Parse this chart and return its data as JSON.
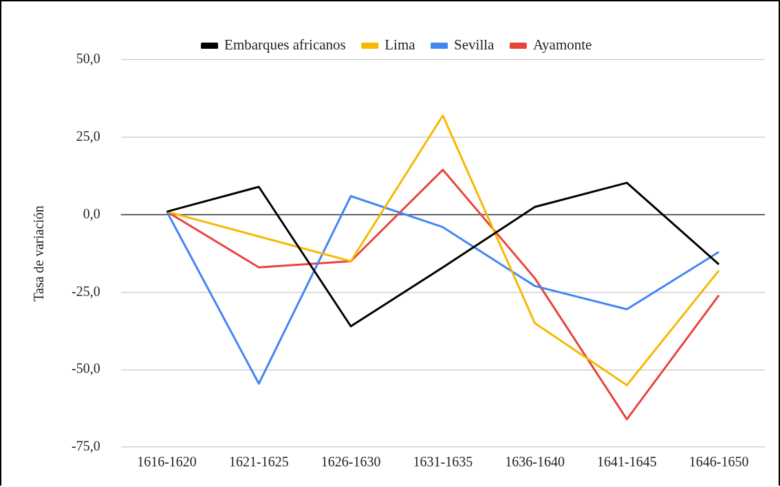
{
  "chart_data": {
    "type": "line",
    "ylabel": "Tasa de variación",
    "categories": [
      "1616-1620",
      "1621-1625",
      "1626-1630",
      "1631-1635",
      "1636-1640",
      "1641-1645",
      "1646-1650"
    ],
    "series": [
      {
        "name": "Embarques africanos",
        "color": "#000000",
        "values": [
          1,
          9,
          -36,
          -17,
          2.5,
          10.3,
          -16
        ]
      },
      {
        "name": "Lima",
        "color": "#f6b900",
        "values": [
          1,
          -7,
          -15,
          32,
          -35,
          -55,
          -18
        ]
      },
      {
        "name": "Sevilla",
        "color": "#4485f4",
        "values": [
          1,
          -54.5,
          6,
          -4,
          -23,
          -30.5,
          -12
        ]
      },
      {
        "name": "Ayamonte",
        "color": "#e9443a",
        "values": [
          1,
          -17,
          -15,
          14.5,
          -20.5,
          -66,
          -26
        ]
      }
    ],
    "ylim": [
      -75,
      50
    ],
    "yticks": [
      {
        "value": -75,
        "label": "-75,0"
      },
      {
        "value": -50,
        "label": "-50,0"
      },
      {
        "value": -25,
        "label": "-25,0"
      },
      {
        "value": 0,
        "label": "0,0"
      },
      {
        "value": 25,
        "label": "25,0"
      },
      {
        "value": 50,
        "label": "50,0"
      }
    ],
    "ref_lines": [
      {
        "axis": "y",
        "value": 0,
        "color": "#333333"
      }
    ],
    "grid": "y",
    "legend": "top",
    "marker": "none",
    "line_style": "solid"
  }
}
